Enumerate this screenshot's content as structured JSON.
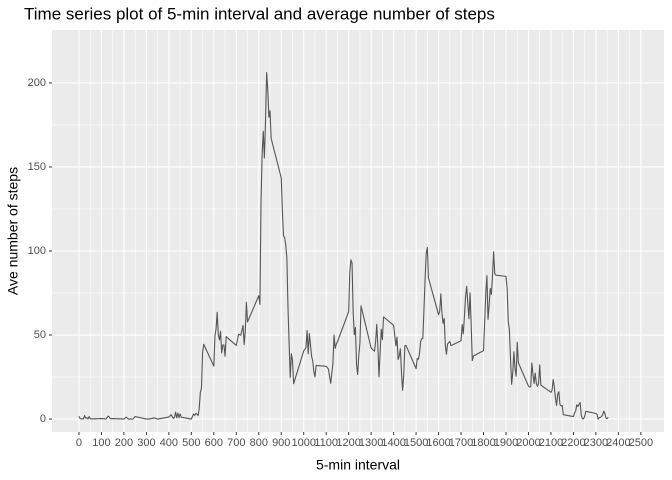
{
  "chart_data": {
    "type": "line",
    "title": "Time series plot of 5-min interval and average number of steps",
    "x_label": "5-min interval",
    "y_label": "Ave number of steps",
    "x": [
      0,
      5,
      10,
      15,
      20,
      25,
      30,
      35,
      40,
      45,
      50,
      55,
      100,
      110,
      120,
      130,
      140,
      150,
      200,
      210,
      220,
      230,
      240,
      250,
      300,
      310,
      320,
      330,
      340,
      350,
      400,
      410,
      420,
      425,
      430,
      435,
      440,
      445,
      450,
      455,
      500,
      505,
      510,
      515,
      520,
      525,
      530,
      535,
      540,
      545,
      550,
      555,
      600,
      605,
      610,
      615,
      620,
      625,
      630,
      635,
      640,
      645,
      650,
      655,
      700,
      710,
      720,
      730,
      735,
      740,
      745,
      750,
      800,
      805,
      810,
      815,
      820,
      825,
      830,
      835,
      840,
      845,
      850,
      855,
      900,
      905,
      910,
      915,
      920,
      925,
      930,
      935,
      940,
      945,
      950,
      955,
      1000,
      1010,
      1015,
      1020,
      1025,
      1030,
      1035,
      1040,
      1045,
      1050,
      1055,
      1100,
      1110,
      1120,
      1130,
      1135,
      1140,
      1145,
      1150,
      1200,
      1205,
      1210,
      1215,
      1220,
      1225,
      1230,
      1235,
      1240,
      1245,
      1250,
      1255,
      1300,
      1310,
      1315,
      1320,
      1325,
      1330,
      1335,
      1340,
      1345,
      1350,
      1355,
      1400,
      1410,
      1415,
      1420,
      1425,
      1430,
      1435,
      1440,
      1445,
      1450,
      1455,
      1500,
      1505,
      1510,
      1515,
      1520,
      1525,
      1530,
      1535,
      1540,
      1545,
      1550,
      1555,
      1600,
      1605,
      1610,
      1615,
      1620,
      1625,
      1630,
      1635,
      1640,
      1645,
      1650,
      1655,
      1700,
      1705,
      1710,
      1715,
      1720,
      1725,
      1730,
      1735,
      1740,
      1745,
      1750,
      1755,
      1800,
      1805,
      1810,
      1815,
      1820,
      1825,
      1830,
      1835,
      1840,
      1845,
      1850,
      1855,
      1900,
      1905,
      1910,
      1915,
      1920,
      1925,
      1930,
      1935,
      1940,
      1945,
      1950,
      1955,
      2000,
      2005,
      2010,
      2015,
      2020,
      2025,
      2030,
      2035,
      2040,
      2045,
      2050,
      2055,
      2100,
      2105,
      2110,
      2115,
      2120,
      2125,
      2130,
      2135,
      2140,
      2145,
      2150,
      2155,
      2200,
      2205,
      2210,
      2215,
      2220,
      2225,
      2230,
      2235,
      2240,
      2245,
      2250,
      2255,
      2300,
      2305,
      2310,
      2315,
      2320,
      2325,
      2330,
      2335,
      2340,
      2345,
      2350,
      2355
    ],
    "values": [
      1.7,
      0.3,
      0.1,
      0.2,
      0.1,
      2.1,
      0.5,
      0.9,
      0,
      1.5,
      0.3,
      0.1,
      0.3,
      0.2,
      0,
      1.8,
      0.2,
      0.3,
      0,
      1.1,
      0,
      0,
      0,
      1.5,
      0,
      0,
      0.2,
      0.6,
      0.5,
      0,
      1.2,
      2.6,
      0.3,
      1.1,
      4.1,
      0.7,
      3.5,
      0.8,
      3.1,
      1.1,
      0,
      1.6,
      3,
      2.2,
      3.3,
      3,
      2.1,
      6.1,
      16,
      18.3,
      39.5,
      44.5,
      31.5,
      49.3,
      53.8,
      63.5,
      50,
      47.1,
      52.2,
      39.3,
      44,
      44.2,
      37.4,
      49,
      43.8,
      50.5,
      49.9,
      55.7,
      44.3,
      52.3,
      69.5,
      57.8,
      73.4,
      68.2,
      129.4,
      157.5,
      171.2,
      155.4,
      177.3,
      206.2,
      195.9,
      179.6,
      183.4,
      167,
      143.5,
      124,
      109.1,
      108.1,
      103.7,
      95.9,
      66.2,
      45.2,
      24.8,
      38.8,
      35,
      21,
      40.6,
      42.4,
      52.7,
      38.9,
      50.8,
      44.3,
      37.4,
      34.7,
      28.3,
      25.1,
      31.9,
      31.4,
      29.7,
      21.3,
      33.3,
      50,
      42,
      44.6,
      46,
      63.9,
      87.6,
      94.8,
      92.8,
      63.4,
      50.2,
      54.5,
      32.4,
      26.5,
      37.7,
      45.1,
      67.3,
      42.3,
      40.9,
      40.4,
      46.2,
      56.4,
      42.8,
      25.1,
      39.9,
      53.5,
      47.3,
      60.8,
      55.8,
      43.6,
      48.7,
      35.5,
      37.5,
      41.8,
      27.5,
      17.1,
      26.1,
      43.6,
      43.8,
      30,
      36.1,
      35.5,
      38.8,
      46,
      47.8,
      48.1,
      65.3,
      82.9,
      98.7,
      102.1,
      84,
      62.1,
      64.1,
      74.5,
      63.2,
      56.9,
      59.8,
      43.9,
      38.6,
      44.7,
      45.5,
      46.2,
      43.7,
      46.6,
      56.3,
      50.7,
      61.2,
      72.7,
      78.9,
      68.9,
      59.7,
      75.1,
      56.5,
      34.8,
      37.5,
      40.7,
      58,
      74.7,
      85.3,
      59.3,
      67.8,
      77.7,
      74.2,
      85.3,
      99.5,
      86.6,
      85.6,
      84.9,
      77.8,
      58,
      53.4,
      36.3,
      20.7,
      27.4,
      40,
      30.2,
      25.5,
      45.7,
      33.5,
      19.6,
      19,
      19.3,
      33.3,
      26.8,
      21.2,
      27.3,
      21.3,
      19.5,
      21.3,
      32.3,
      20.2,
      15.9,
      17.2,
      23.5,
      19.2,
      12.5,
      8.1,
      14.7,
      16.3,
      8.7,
      7.8,
      8.1,
      2.6,
      1.5,
      3.7,
      4.8,
      8.5,
      7.5,
      8.7,
      9.8,
      2.2,
      0.3,
      0.1,
      1.6,
      4.6,
      3.3,
      2.8,
      0,
      0.8,
      1,
      1.6,
      2.6,
      4.7,
      3.3,
      0.6,
      0.2,
      1.1
    ],
    "color": "#555555",
    "xlim": [
      -120,
      2603
    ],
    "ylim": [
      -7.7,
      231.5
    ],
    "xticks": [
      0,
      100,
      200,
      300,
      400,
      500,
      600,
      700,
      800,
      900,
      1000,
      1100,
      1200,
      1300,
      1400,
      1500,
      1600,
      1700,
      1800,
      1900,
      2000,
      2100,
      2200,
      2300,
      2400,
      2500
    ],
    "yticks": [
      0,
      50,
      100,
      150,
      200
    ],
    "grid": true,
    "minor_grid": true
  }
}
